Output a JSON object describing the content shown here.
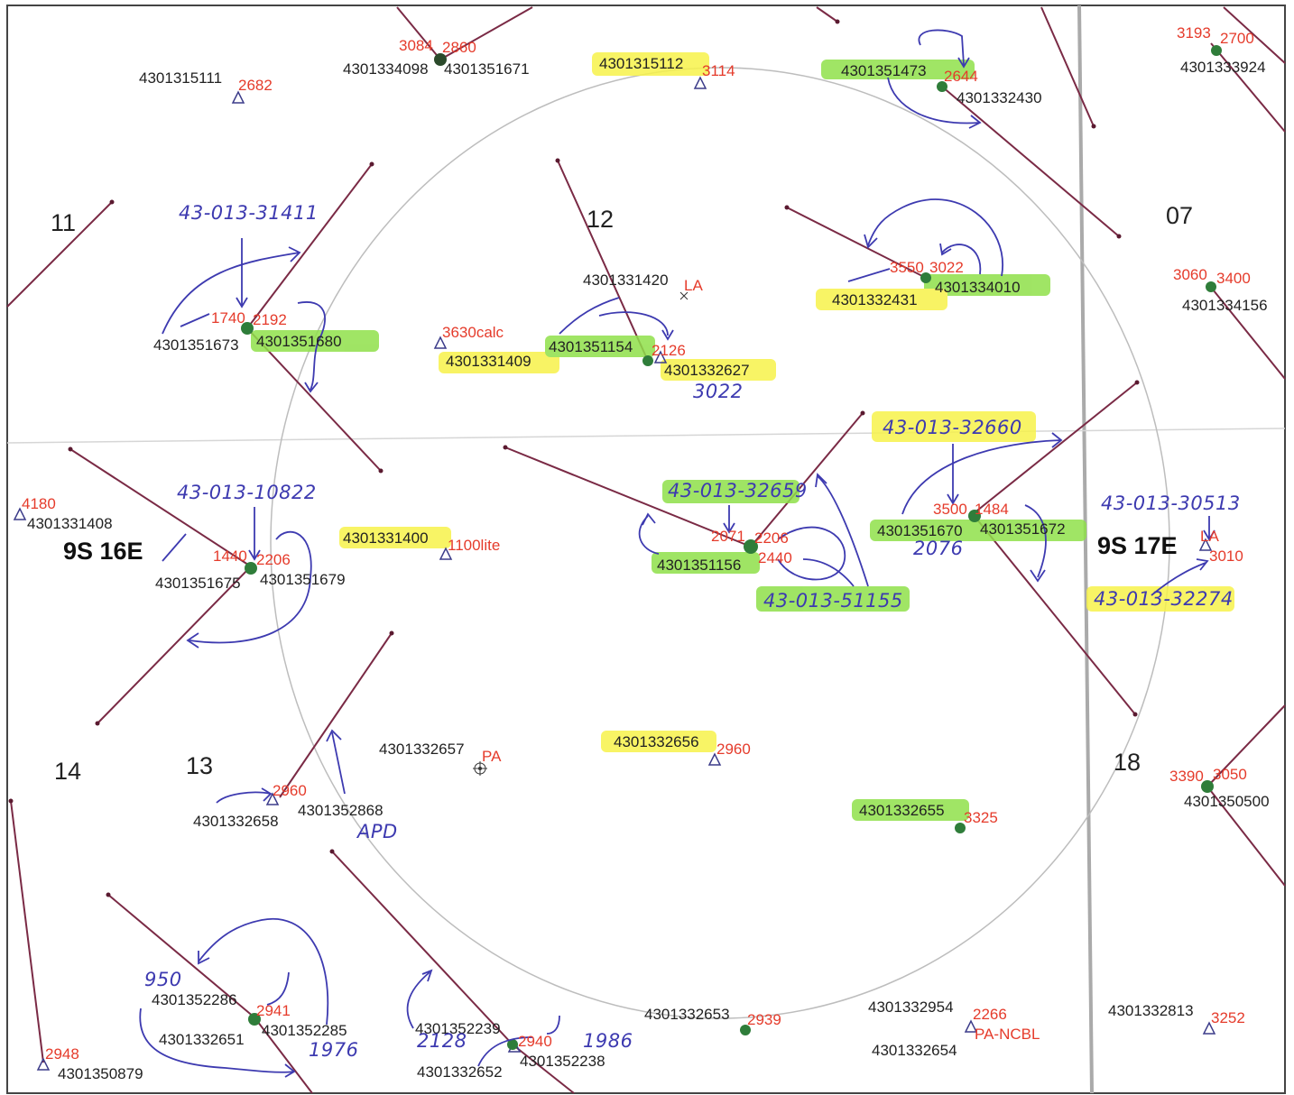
{
  "sections": [
    "11",
    "12",
    "07",
    "14",
    "13",
    "18"
  ],
  "townships": [
    "9S 16E",
    "9S 17E"
  ],
  "wells": [
    {
      "api": "4301315111",
      "num": "2682"
    },
    {
      "api": "4301334098",
      "num": "3084",
      "api2": "4301351671",
      "num2": "2860"
    },
    {
      "api": "4301315112",
      "num": "3114"
    },
    {
      "api": "4301351473",
      "num": "2644",
      "api2": "4301332430"
    },
    {
      "api": "4301333924",
      "num": "3193",
      "num2": "2700"
    },
    {
      "api": "4301351673",
      "num": "1740",
      "api2": "4301351680",
      "num2": "2192"
    },
    {
      "api": "4301331420",
      "num": "LA"
    },
    {
      "api": "4301351154",
      "num": "2126",
      "api2": "4301332627"
    },
    {
      "api": "4301331409",
      "num": "3630calc"
    },
    {
      "api": "4301332431",
      "num": "3550",
      "api2": "4301334010",
      "num2": "3022"
    },
    {
      "api": "4301334156",
      "num": "3060",
      "num2": "3400"
    },
    {
      "api": "4301331408",
      "num": "4180"
    },
    {
      "api": "4301351675",
      "num": "1440",
      "api2": "4301351679",
      "num2": "2206"
    },
    {
      "api": "4301331400",
      "num": "1100lite"
    },
    {
      "api": "4301351156",
      "num": "2071",
      "num2": "2206",
      "num3": "2440"
    },
    {
      "api": "4301351670",
      "num": "3500",
      "api2": "4301351672",
      "num2": "1484"
    },
    {
      "api": "",
      "num": "LA",
      "num2": "3010"
    },
    {
      "api": "4301332657",
      "num": "PA"
    },
    {
      "api": "4301332656",
      "num": "2960"
    },
    {
      "api": "4301332658",
      "num": "2960",
      "api2": "4301352868"
    },
    {
      "api": "4301332655",
      "num": "3325"
    },
    {
      "api": "4301350500",
      "num": "3390",
      "num2": "3050"
    },
    {
      "api": "4301352286",
      "num": "2941",
      "api2": "4301352285",
      "api3": "4301332651"
    },
    {
      "api": "4301352239",
      "num": "2940",
      "api2": "4301352238",
      "api3": "4301332652"
    },
    {
      "api": "4301332653",
      "num": "2939"
    },
    {
      "api": "4301332954",
      "num": "2266",
      "api2": "4301332654",
      "num2": "PA-NCBL"
    },
    {
      "api": "4301332813",
      "num": "3252"
    },
    {
      "api": "4301350879",
      "num": "2948"
    }
  ],
  "handwritten": {
    "h1": "43-013-31411",
    "h2": "43-013-10822",
    "h3": "3022",
    "h4": "43-013-32660",
    "h5": "43-013-32659",
    "h6": "43-013-51155",
    "h7": "2076",
    "h8": "43-013-30513",
    "h9": "43-013-32274",
    "h10": "APD",
    "h11": "950",
    "h12": "1976",
    "h13": "2128",
    "h14": "1986"
  },
  "colors": {
    "line": "#7a2a45",
    "red": "#e53b2b",
    "blue": "#3d3ab0",
    "green": "#8fe04a",
    "yellow": "#f7f24a",
    "dot": "#2f7d3a"
  }
}
